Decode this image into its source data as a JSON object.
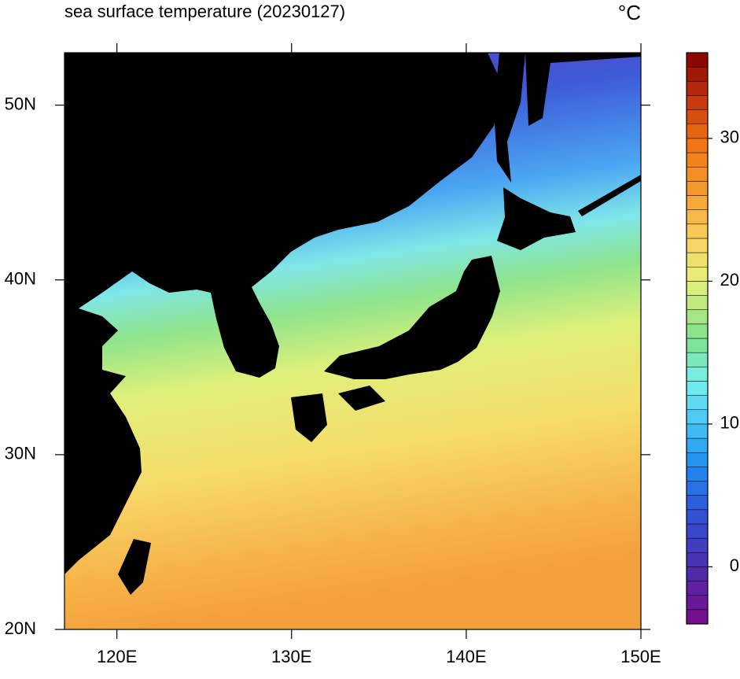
{
  "chart_data": {
    "type": "map",
    "title": "sea surface temperature (20230127)",
    "unit": "°C",
    "xlim": [
      117,
      150
    ],
    "ylim": [
      20,
      53
    ],
    "xticks": [
      {
        "value": 120,
        "label": "120E"
      },
      {
        "value": 130,
        "label": "130E"
      },
      {
        "value": 140,
        "label": "140E"
      },
      {
        "value": 150,
        "label": "150E"
      }
    ],
    "yticks": [
      {
        "value": 20,
        "label": "20N"
      },
      {
        "value": 30,
        "label": "30N"
      },
      {
        "value": 40,
        "label": "40N"
      },
      {
        "value": 50,
        "label": "50N"
      }
    ],
    "colorbar": {
      "lim": [
        -4,
        36
      ],
      "ticks": [
        0,
        10,
        20,
        30
      ],
      "step": 1,
      "colors": [
        "#7a0a8a",
        "#4b2fae",
        "#2f55d8",
        "#1e8cf0",
        "#45c4f5",
        "#78f0ee",
        "#7ee08a",
        "#e6f07a",
        "#f8d060",
        "#f5a030",
        "#ee7010",
        "#c03010",
        "#800000"
      ],
      "stops": [
        -4,
        0,
        4,
        7,
        10,
        13,
        16,
        20,
        23,
        26,
        30,
        33,
        36
      ]
    }
  }
}
